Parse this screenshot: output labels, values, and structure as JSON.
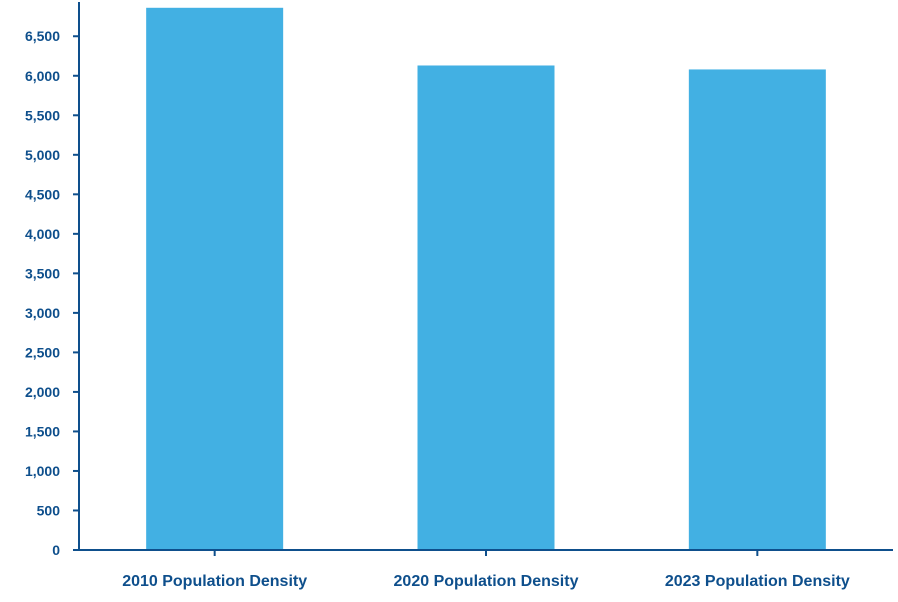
{
  "chart_data": {
    "type": "bar",
    "categories": [
      "2010 Population Density",
      "2020 Population Density",
      "2023 Population Density"
    ],
    "values": [
      6860,
      6130,
      6080
    ],
    "ylim": [
      0,
      6870
    ],
    "yticks": [
      0,
      500,
      1000,
      1500,
      2000,
      2500,
      3000,
      3500,
      4000,
      4500,
      5000,
      5500,
      6000,
      6500
    ],
    "ytick_labels": [
      "0",
      "500",
      "1,000",
      "1,500",
      "2,000",
      "2,500",
      "3,000",
      "3,500",
      "4,000",
      "4,500",
      "5,000",
      "5,500",
      "6,000",
      "6,500"
    ],
    "grid": false,
    "colors": {
      "bar": "#42b0e3",
      "axis": "#0e4f8c",
      "text": "#0e4f8c"
    }
  }
}
